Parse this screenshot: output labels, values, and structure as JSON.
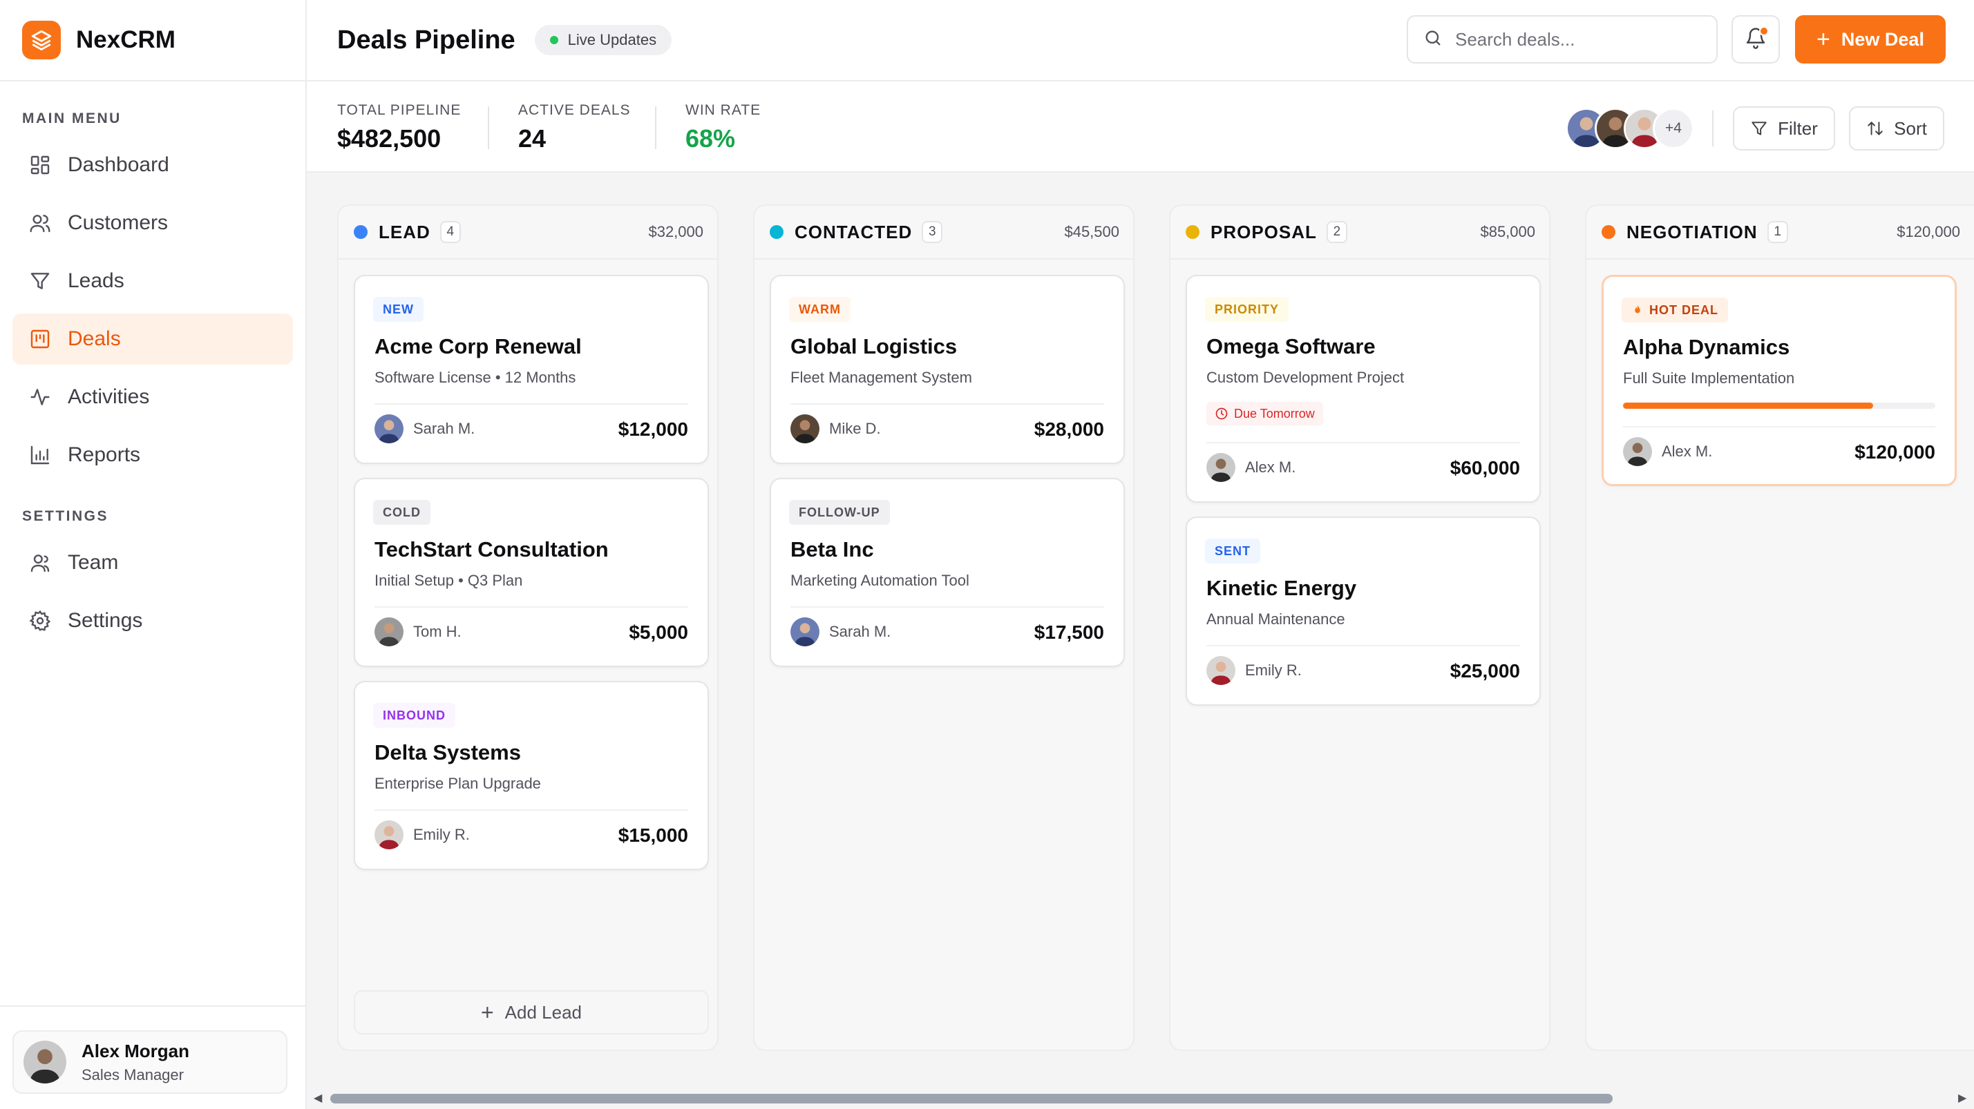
{
  "app": {
    "name": "NexCRM",
    "accent": "#f97316"
  },
  "sidebar": {
    "main_menu_title": "MAIN MENU",
    "main_items": [
      {
        "label": "Dashboard",
        "icon": "dashboard-grid-icon",
        "active": false
      },
      {
        "label": "Customers",
        "icon": "users-icon",
        "active": false
      },
      {
        "label": "Leads",
        "icon": "funnel-icon",
        "active": false
      },
      {
        "label": "Deals",
        "icon": "kanban-board-icon",
        "active": true
      },
      {
        "label": "Activities",
        "icon": "activity-pulse-icon",
        "active": false
      },
      {
        "label": "Reports",
        "icon": "bar-chart-icon",
        "active": false
      }
    ],
    "settings_title": "SETTINGS",
    "settings_items": [
      {
        "label": "Team",
        "icon": "team-icon"
      },
      {
        "label": "Settings",
        "icon": "gear-icon"
      }
    ],
    "profile": {
      "name": "Alex Morgan",
      "role": "Sales Manager"
    }
  },
  "header": {
    "title": "Deals Pipeline",
    "live_label": "Live Updates",
    "search_placeholder": "Search deals...",
    "new_deal_label": "New Deal",
    "new_deal_icon": "plus-icon"
  },
  "stats": {
    "total_pipeline_label": "TOTAL PIPELINE",
    "total_pipeline_value": "$482,500",
    "active_deals_label": "ACTIVE DEALS",
    "active_deals_value": "24",
    "win_rate_label": "WIN RATE",
    "win_rate_value": "68%",
    "more_members": "+4",
    "filter_label": "Filter",
    "sort_label": "Sort"
  },
  "columns": [
    {
      "name": "LEAD",
      "count": "4",
      "total": "$32,000",
      "color": "#3b82f6",
      "add_label": "Add Lead",
      "cards": [
        {
          "tag": "NEW",
          "title": "Acme Corp Renewal",
          "subtitle": "Software License • 12 Months",
          "owner": "Sarah M.",
          "value": "$12,000"
        },
        {
          "tag": "COLD",
          "title": "TechStart Consultation",
          "subtitle": "Initial Setup • Q3 Plan",
          "owner": "Tom H.",
          "value": "$5,000"
        },
        {
          "tag": "INBOUND",
          "title": "Delta Systems",
          "subtitle": "Enterprise Plan Upgrade",
          "owner": "Emily R.",
          "value": "$15,000"
        }
      ]
    },
    {
      "name": "CONTACTED",
      "count": "3",
      "total": "$45,500",
      "color": "#06b6d4",
      "cards": [
        {
          "tag": "WARM",
          "title": "Global Logistics",
          "subtitle": "Fleet Management System",
          "owner": "Mike D.",
          "value": "$28,000"
        },
        {
          "tag": "FOLLOW-UP",
          "title": "Beta Inc",
          "subtitle": "Marketing Automation Tool",
          "owner": "Sarah M.",
          "value": "$17,500"
        }
      ]
    },
    {
      "name": "PROPOSAL",
      "count": "2",
      "total": "$85,000",
      "color": "#eab308",
      "cards": [
        {
          "tag": "PRIORITY",
          "title": "Omega Software",
          "subtitle": "Custom Development Project",
          "due": "Due Tomorrow",
          "owner": "Alex M.",
          "value": "$60,000"
        },
        {
          "tag": "SENT",
          "title": "Kinetic Energy",
          "subtitle": "Annual Maintenance",
          "owner": "Emily R.",
          "value": "$25,000"
        }
      ]
    },
    {
      "name": "NEGOTIATION",
      "count": "1",
      "total": "$120,000",
      "color": "#f97316",
      "cards": [
        {
          "tag": "HOT DEAL",
          "title": "Alpha Dynamics",
          "subtitle": "Full Suite Implementation",
          "progress": 0.8,
          "owner": "Alex M.",
          "value": "$120,000"
        }
      ]
    }
  ]
}
